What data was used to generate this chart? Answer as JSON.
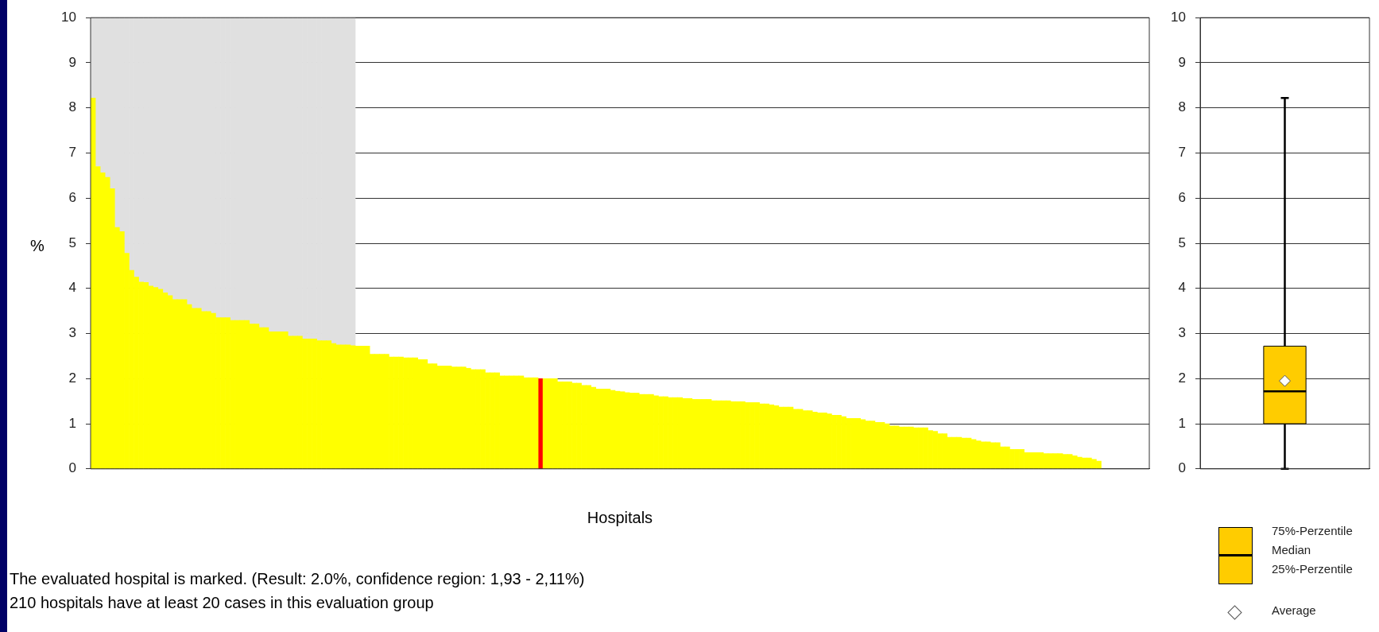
{
  "chart_data": [
    {
      "type": "bar",
      "xlabel": "Hospitals",
      "ylabel": "%",
      "stacked": true,
      "grid": "y",
      "tick_labels": "y",
      "ylim": [
        0,
        10
      ],
      "yticks": [
        0,
        1,
        2,
        3,
        4,
        5,
        6,
        7,
        8,
        9,
        10
      ],
      "annotations": [
        "The evaluated hospital is marked. (Result: 2.0%, confidence region: 1,93 - 2,11%)",
        "210 hospitals have at least 20 cases in this evaluation group"
      ],
      "categories": [
        null,
        null,
        null,
        null,
        null,
        null,
        null,
        null,
        null,
        null,
        null,
        null,
        null,
        null,
        null,
        null,
        null,
        null,
        null,
        null,
        null,
        null,
        null,
        null,
        null,
        null,
        null,
        null,
        null,
        null,
        null,
        null,
        null,
        null,
        null,
        null,
        null,
        null,
        null,
        null,
        null,
        null,
        null,
        null,
        null,
        null,
        null,
        null,
        null,
        null,
        null,
        null,
        null,
        null,
        null,
        null,
        null,
        null,
        null,
        null,
        null,
        null,
        null,
        null,
        null,
        null,
        null,
        null,
        null,
        null,
        null,
        null,
        null,
        null,
        null,
        null,
        null,
        null,
        null,
        null,
        null,
        null,
        null,
        null,
        null,
        null,
        null,
        null,
        null,
        null,
        null,
        null,
        null,
        null,
        null,
        null,
        null,
        null,
        null,
        null,
        null,
        null,
        null,
        null,
        null,
        null,
        null,
        null,
        null,
        null,
        null,
        null,
        null,
        null,
        null,
        null,
        null,
        null,
        null,
        null,
        null,
        null,
        null,
        null,
        null,
        null,
        null,
        null,
        null,
        null,
        null,
        null,
        null,
        null,
        null,
        null,
        null,
        null,
        null,
        null,
        null,
        null,
        null,
        null,
        null,
        null,
        null,
        null,
        null,
        null,
        null,
        null,
        null,
        null,
        null,
        null,
        null,
        null,
        null,
        null,
        null,
        null,
        null,
        null,
        null,
        null,
        null,
        null,
        null,
        null,
        null,
        null,
        null,
        null,
        null,
        null,
        null,
        null,
        null,
        null,
        null,
        null,
        null,
        null,
        null,
        null,
        null,
        null,
        null,
        null,
        null,
        null,
        null,
        null,
        null,
        null,
        null,
        null,
        null,
        null,
        null,
        null,
        null,
        null,
        null,
        null,
        null,
        null,
        null,
        null,
        null,
        null,
        null,
        null,
        null,
        null,
        null,
        null,
        null,
        null
      ],
      "series": [
        {
          "color": "#ffff00",
          "values": [
            8.22,
            6.7,
            6.56,
            6.46,
            6.21,
            5.35,
            5.26,
            4.78,
            4.4,
            4.25,
            4.14,
            4.13,
            4.05,
            4.02,
            3.98,
            3.9,
            3.84,
            3.75,
            3.75,
            3.75,
            3.64,
            3.56,
            3.56,
            3.49,
            3.49,
            3.45,
            3.35,
            3.35,
            3.35,
            3.29,
            3.29,
            3.29,
            3.29,
            3.21,
            3.21,
            3.13,
            3.13,
            3.04,
            3.04,
            3.04,
            3.04,
            2.94,
            2.94,
            2.94,
            2.88,
            2.88,
            2.88,
            2.84,
            2.84,
            2.84,
            2.78,
            2.75,
            2.75,
            2.75,
            2.73,
            2.72,
            2.72,
            2.72,
            2.54,
            2.54,
            2.54,
            2.54,
            2.48,
            2.48,
            2.48,
            2.46,
            2.46,
            2.46,
            2.42,
            2.42,
            2.33,
            2.33,
            2.28,
            2.28,
            2.28,
            2.26,
            2.26,
            2.26,
            2.23,
            2.2,
            2.2,
            2.2,
            2.13,
            2.13,
            2.13,
            2.06,
            2.06,
            2.06,
            2.06,
            2.06,
            2.02,
            2.02,
            2.02,
            null,
            2.0,
            2.0,
            2.0,
            1.93,
            1.93,
            1.93,
            1.9,
            1.9,
            1.85,
            1.85,
            1.81,
            1.77,
            1.77,
            1.77,
            1.74,
            1.72,
            1.71,
            1.69,
            1.68,
            1.68,
            1.65,
            1.65,
            1.65,
            1.62,
            1.6,
            1.6,
            1.58,
            1.58,
            1.58,
            1.56,
            1.56,
            1.54,
            1.54,
            1.54,
            1.54,
            1.51,
            1.51,
            1.51,
            1.51,
            1.49,
            1.49,
            1.49,
            1.47,
            1.47,
            1.47,
            1.44,
            1.44,
            1.42,
            1.4,
            1.37,
            1.37,
            1.37,
            1.32,
            1.32,
            1.29,
            1.29,
            1.26,
            1.24,
            1.24,
            1.22,
            1.19,
            1.19,
            1.16,
            1.12,
            1.12,
            1.12,
            1.09,
            1.06,
            1.06,
            1.03,
            1.03,
            1.0,
            0.95,
            0.95,
            0.93,
            0.93,
            0.93,
            0.91,
            0.91,
            0.91,
            0.85,
            0.83,
            0.78,
            0.78,
            0.7,
            0.7,
            0.7,
            0.68,
            0.68,
            0.65,
            0.62,
            0.6,
            0.6,
            0.58,
            0.58,
            0.49,
            0.49,
            0.43,
            0.43,
            0.43,
            0.36,
            0.36,
            0.36,
            0.36,
            0.34,
            0.34,
            0.34,
            0.34,
            0.32,
            0.32,
            0.29,
            0.26,
            0.24,
            0.24,
            0.21,
            0.17,
            null,
            null,
            null,
            null,
            null,
            null,
            null,
            null,
            null,
            null
          ]
        },
        {
          "color": "#ff0000",
          "values": [
            null,
            null,
            null,
            null,
            null,
            null,
            null,
            null,
            null,
            null,
            null,
            null,
            null,
            null,
            null,
            null,
            null,
            null,
            null,
            null,
            null,
            null,
            null,
            null,
            null,
            null,
            null,
            null,
            null,
            null,
            null,
            null,
            null,
            null,
            null,
            null,
            null,
            null,
            null,
            null,
            null,
            null,
            null,
            null,
            null,
            null,
            null,
            null,
            null,
            null,
            null,
            null,
            null,
            null,
            null,
            null,
            null,
            null,
            null,
            null,
            null,
            null,
            null,
            null,
            null,
            null,
            null,
            null,
            null,
            null,
            null,
            null,
            null,
            null,
            null,
            null,
            null,
            null,
            null,
            null,
            null,
            null,
            null,
            null,
            null,
            null,
            null,
            null,
            null,
            null,
            null,
            null,
            null,
            2.0,
            null,
            null,
            null,
            null,
            null,
            null,
            null,
            null,
            null,
            null,
            null,
            null,
            null,
            null,
            null,
            null,
            null,
            null,
            null,
            null,
            null,
            null,
            null,
            null,
            null,
            null,
            null,
            null,
            null,
            null,
            null,
            null,
            null,
            null,
            null,
            null,
            null,
            null,
            null,
            null,
            null,
            null,
            null,
            null,
            null,
            null,
            null,
            null,
            null,
            null,
            null,
            null,
            null,
            null,
            null,
            null,
            null,
            null,
            null,
            null,
            null,
            null,
            null,
            null,
            null,
            null,
            null,
            null,
            null,
            null,
            null,
            null,
            null,
            null,
            null,
            null,
            null,
            null,
            null,
            null,
            null,
            null,
            null,
            null,
            null,
            null,
            null,
            null,
            null,
            null,
            null,
            null,
            null,
            null,
            null,
            null,
            null,
            null,
            null,
            null,
            null,
            null,
            null,
            null,
            null,
            null,
            null,
            null,
            null,
            null,
            null,
            null,
            null,
            null,
            null,
            null,
            null,
            null,
            null,
            null,
            null,
            null,
            null,
            null,
            null,
            null
          ]
        },
        {
          "color": "#e0e0e0",
          "values": [
            1.78,
            3.3,
            3.44,
            3.54,
            3.79,
            4.65,
            4.74,
            5.22,
            5.6,
            5.75,
            5.86,
            5.87,
            5.95,
            5.98,
            6.02,
            6.1,
            6.16,
            6.25,
            6.25,
            6.25,
            6.36,
            6.44,
            6.44,
            6.51,
            6.51,
            6.55,
            6.65,
            6.65,
            6.65,
            6.71,
            6.71,
            6.71,
            6.71,
            6.79,
            6.79,
            6.87,
            6.87,
            6.96,
            6.96,
            6.96,
            6.96,
            7.06,
            7.06,
            7.06,
            7.12,
            7.12,
            7.12,
            7.16,
            7.16,
            7.16,
            7.22,
            7.25,
            7.25,
            7.25,
            7.27,
            null,
            null,
            null,
            null,
            null,
            null,
            null,
            null,
            null,
            null,
            null,
            null,
            null,
            null,
            null,
            null,
            null,
            null,
            null,
            null,
            null,
            null,
            null,
            null,
            null,
            null,
            null,
            null,
            null,
            null,
            null,
            null,
            null,
            null,
            null,
            null,
            null,
            null,
            null,
            null,
            null,
            null,
            null,
            null,
            null,
            null,
            null,
            null,
            null,
            null,
            null,
            null,
            null,
            null,
            null,
            null,
            null,
            null,
            null,
            null,
            null,
            null,
            null,
            null,
            null,
            null,
            null,
            null,
            null,
            null,
            null,
            null,
            null,
            null,
            null,
            null,
            null,
            null,
            null,
            null,
            null,
            null,
            null,
            null,
            null,
            null,
            null,
            null,
            null,
            null,
            null,
            null,
            null,
            null,
            null,
            null,
            null,
            null,
            null,
            null,
            null,
            null,
            null,
            null,
            null,
            null,
            null,
            null,
            null,
            null,
            null,
            null,
            null,
            null,
            null,
            null,
            null,
            null,
            null,
            null,
            null,
            null,
            null,
            null,
            null,
            null,
            null,
            null,
            null,
            null,
            null,
            null,
            null,
            null,
            null,
            null,
            null,
            null,
            null,
            null,
            null,
            null,
            null,
            null,
            null,
            null,
            null,
            null,
            null,
            null,
            null,
            null,
            null,
            null,
            null,
            null,
            null,
            null,
            null,
            null,
            null,
            null,
            null,
            null,
            null
          ]
        }
      ]
    },
    {
      "type": "box",
      "grid": "y",
      "tick_labels": "y",
      "ylim": [
        0,
        10
      ],
      "yticks": [
        0,
        1,
        2,
        3,
        4,
        5,
        6,
        7,
        8,
        9,
        10
      ],
      "categories": [
        null
      ],
      "color": "#ffcc00",
      "boxes": [
        {
          "low": 0,
          "q1": 1.0,
          "median": 1.72,
          "q3": 2.72,
          "high": 8.22,
          "mean": 1.95
        }
      ],
      "annotations": [
        "75%-Perzentile",
        "Median",
        "25%-Perzentile",
        "Average"
      ]
    }
  ]
}
